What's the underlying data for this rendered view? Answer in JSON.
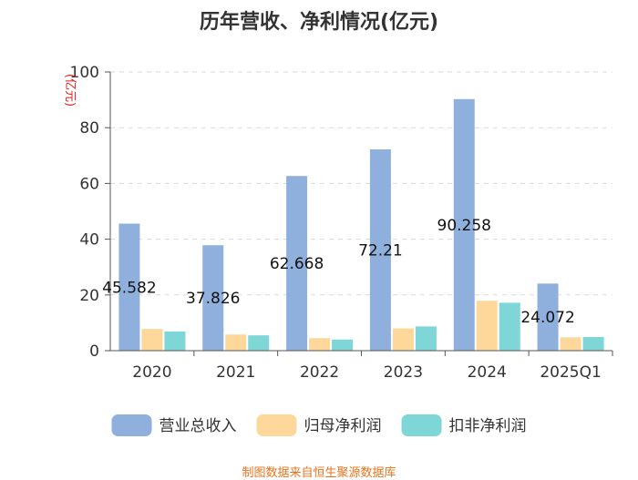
{
  "title": "历年营收、净利情况(亿元)",
  "footer": "制图数据来自恒生聚源数据库",
  "colors": {
    "ylabel": "#e02020",
    "footer": "#e8731c",
    "grid": "#d9d9d9",
    "axis": "#555555"
  },
  "chart_data": {
    "type": "bar",
    "title": "历年营收、净利情况(亿元)",
    "xlabel": "",
    "ylabel": "(亿元)",
    "ylim": [
      0,
      100
    ],
    "yticks": [
      0,
      20,
      40,
      60,
      80,
      100
    ],
    "grid": true,
    "legend": "bottom",
    "categories": [
      "2020",
      "2021",
      "2022",
      "2023",
      "2024",
      "2025Q1"
    ],
    "series": [
      {
        "name": "营业总收入",
        "color": "#8fb0dc",
        "values": [
          45.582,
          37.826,
          62.668,
          72.21,
          90.258,
          24.072
        ],
        "labels": [
          "45.582",
          "37.826",
          "62.668",
          "72.21",
          "90.258",
          "24.072"
        ]
      },
      {
        "name": "归母净利润",
        "color": "#fdd89a",
        "values": [
          7.8,
          5.8,
          4.5,
          8.0,
          17.9,
          4.8
        ]
      },
      {
        "name": "扣非净利润",
        "color": "#7fd6d6",
        "values": [
          6.9,
          5.5,
          4.0,
          8.7,
          17.2,
          4.9
        ]
      }
    ]
  }
}
